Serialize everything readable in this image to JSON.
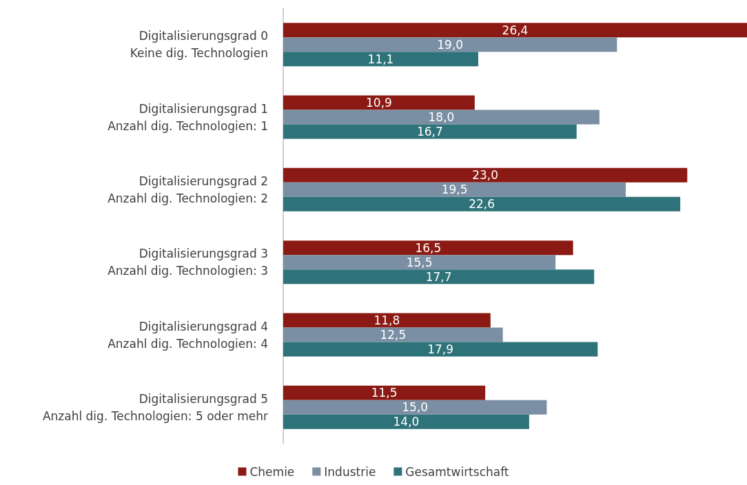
{
  "chart_data": {
    "type": "bar",
    "orientation": "horizontal",
    "categories": [
      "Digitalisierungsgrad 0\nKeine dig. Technologien",
      "Digitalisierungsgrad 1\nAnzahl dig. Technologien: 1",
      "Digitalisierungsgrad 2\nAnzahl dig. Technologien: 2",
      "Digitalisierungsgrad 3\nAnzahl dig. Technologien: 3",
      "Digitalisierungsgrad 4\nAnzahl dig. Technologien: 4",
      "Digitalisierungsgrad 5\nAnzahl dig. Technologien: 5 oder mehr"
    ],
    "series": [
      {
        "name": "Chemie",
        "color": "#8b1a14",
        "values": [
          26.4,
          10.9,
          23.0,
          16.5,
          11.8,
          11.5
        ],
        "value_labels": [
          "26,4",
          "10,9",
          "23,0",
          "16,5",
          "11,8",
          "11,5"
        ]
      },
      {
        "name": "Industrie",
        "color": "#7a8fa3",
        "values": [
          19.0,
          18.0,
          19.5,
          15.5,
          12.5,
          15.0
        ],
        "value_labels": [
          "19,0",
          "18,0",
          "19,5",
          "15,5",
          "12,5",
          "15,0"
        ]
      },
      {
        "name": "Gesamtwirtschaft",
        "color": "#2f737a",
        "values": [
          11.1,
          16.7,
          22.6,
          17.7,
          17.9,
          14.0
        ],
        "value_labels": [
          "11,1",
          "16,7",
          "22,6",
          "17,7",
          "17,9",
          "14,0"
        ]
      }
    ],
    "legend": "bottom",
    "grid": false
  }
}
